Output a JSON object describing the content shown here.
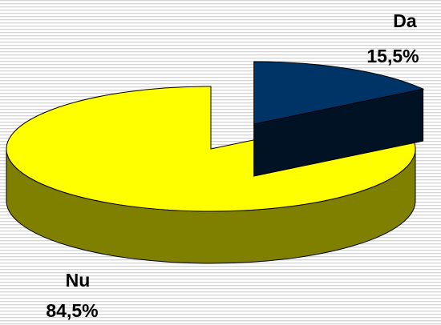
{
  "chart_data": {
    "type": "pie",
    "categories": [
      "Da",
      "Nu"
    ],
    "values": [
      15.5,
      84.5
    ],
    "value_labels": [
      "15,5%",
      "84,5%"
    ],
    "colors": [
      "#003366",
      "#ffff00"
    ]
  }
}
